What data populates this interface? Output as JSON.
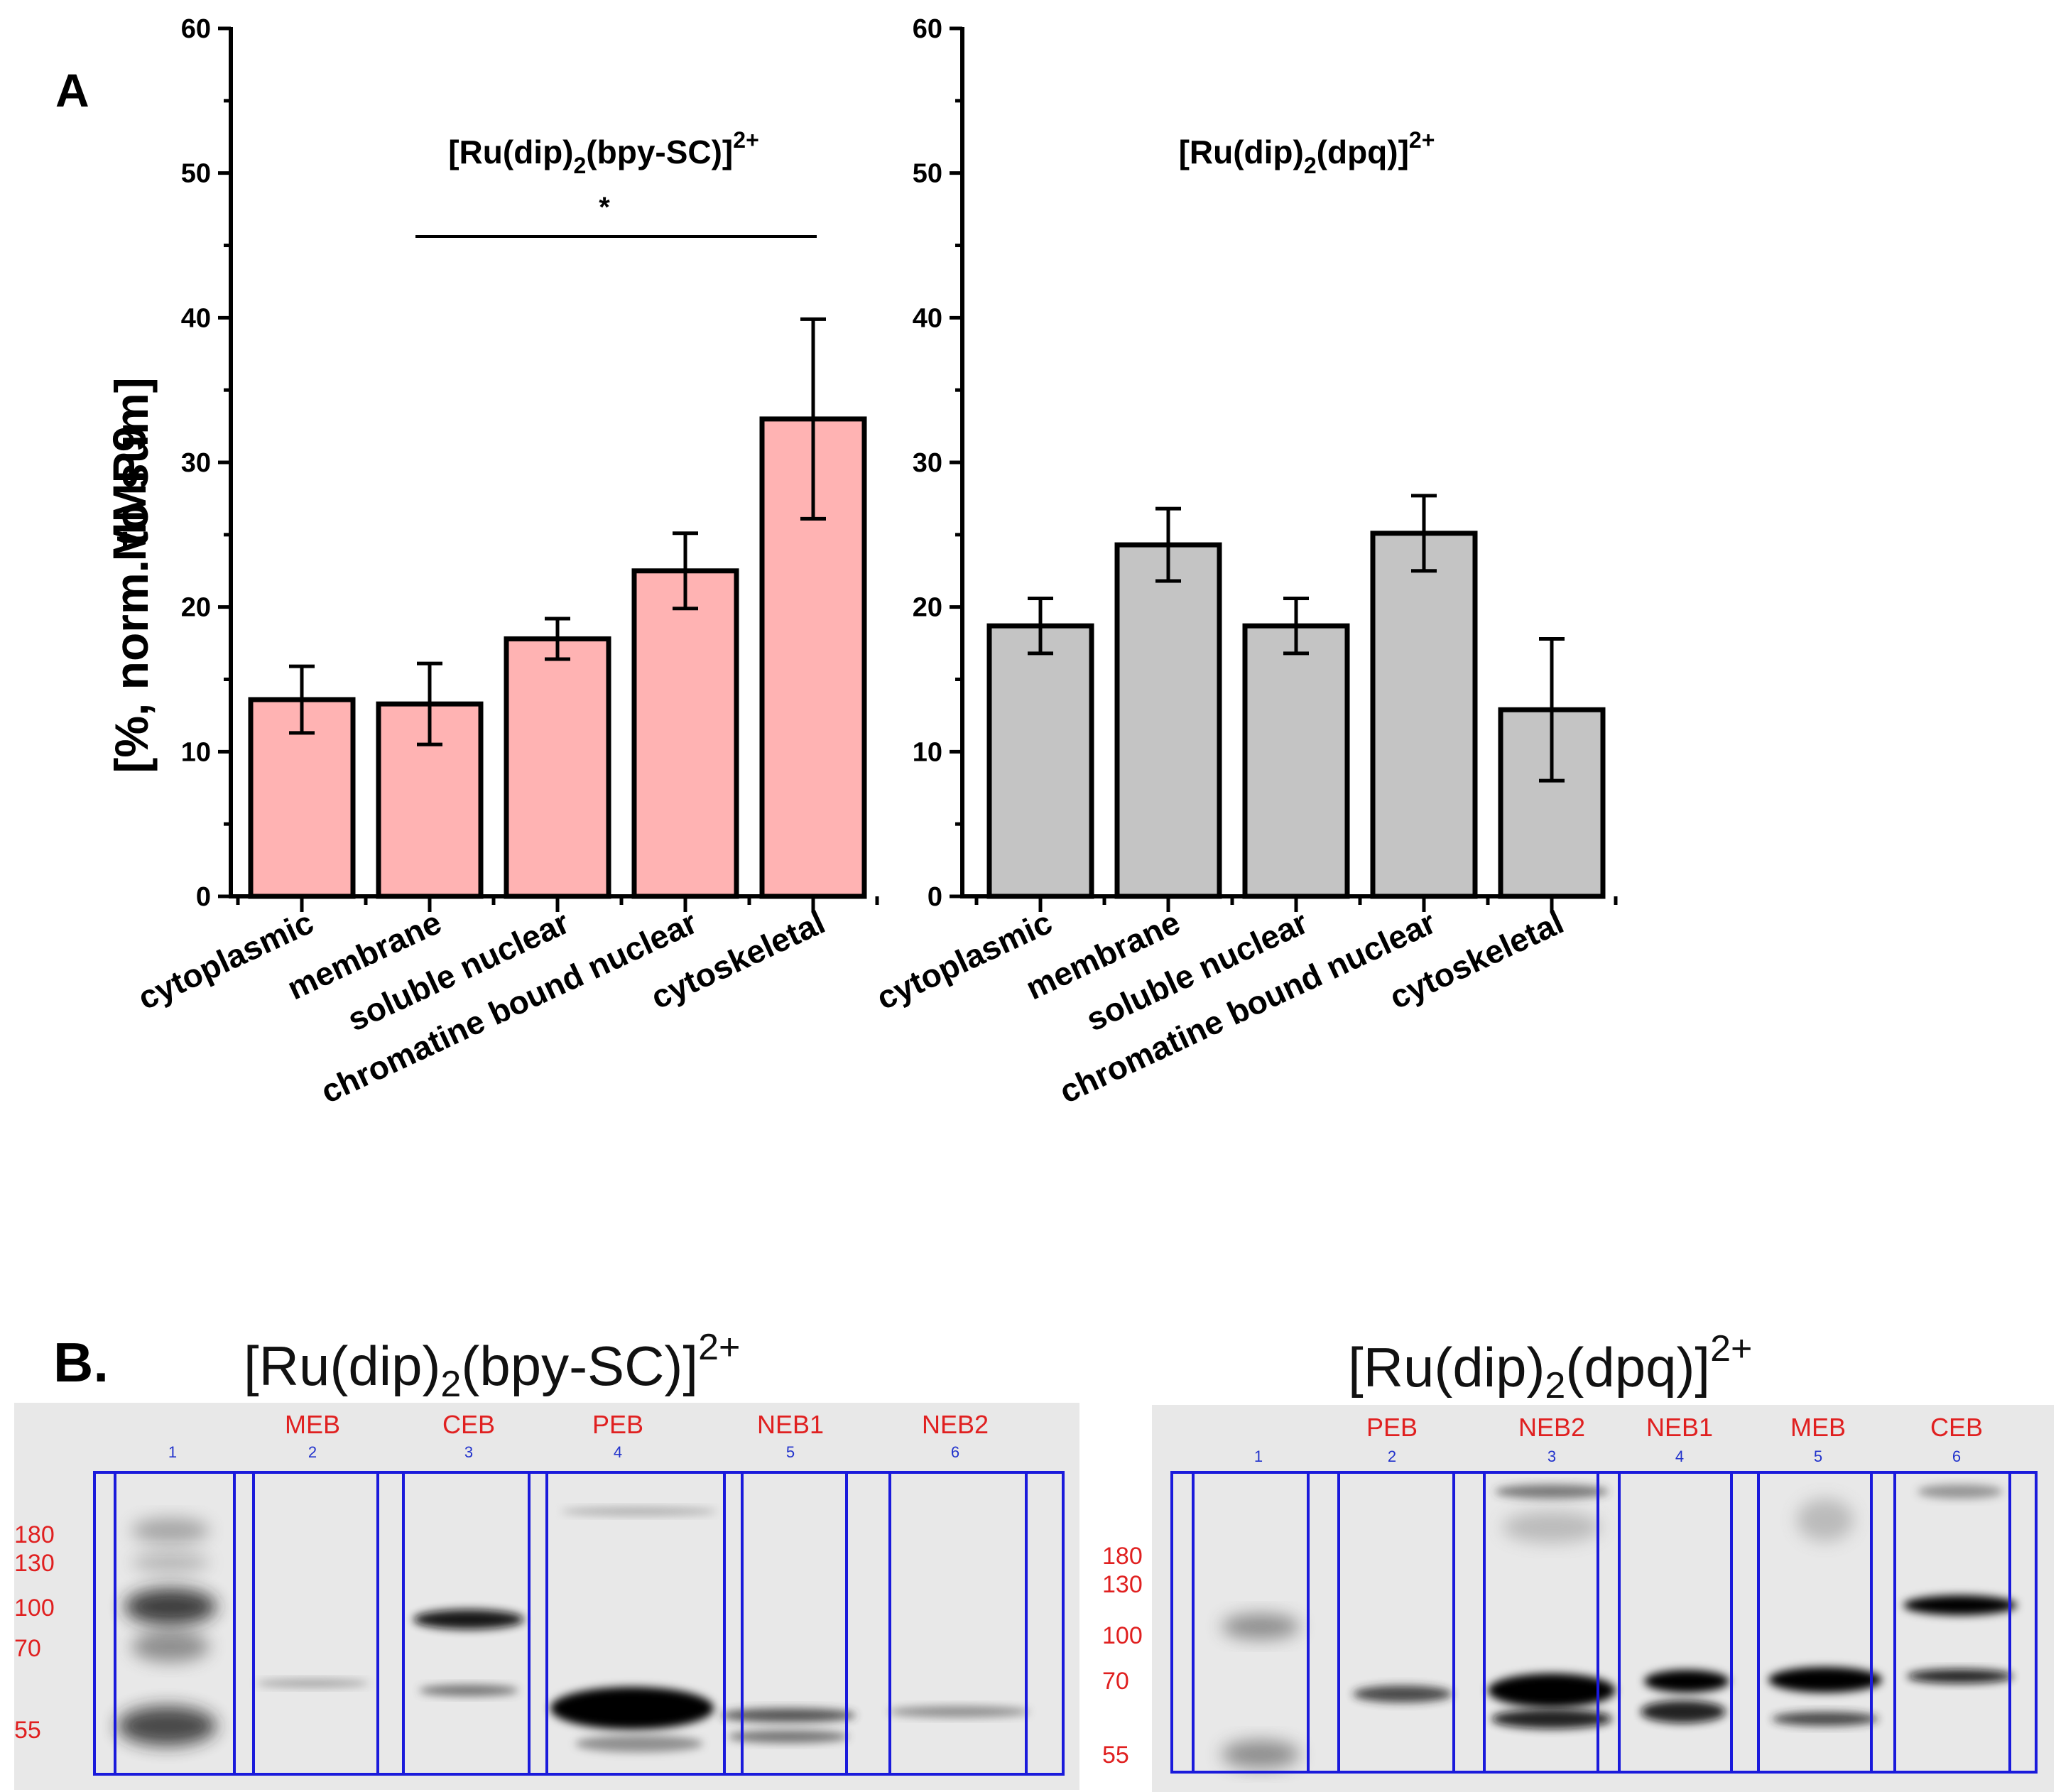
{
  "panel_a": {
    "letter": "A",
    "axis_title_line1": "MMP9",
    "axis_title_line2": "[%, norm. to sum]"
  },
  "chart_data": [
    {
      "type": "bar",
      "title_base": "[Ru(dip)",
      "title_sub": "2",
      "title_rest": "(bpy-SC)]",
      "title_sup": "2+",
      "categories": [
        "cytoplasmic",
        "membrane",
        "soluble nuclear",
        "chromatine bound nuclear",
        "cytoskeletal"
      ],
      "values": [
        13.6,
        13.3,
        17.8,
        22.5,
        33.0
      ],
      "errors": [
        2.3,
        2.8,
        1.4,
        2.6,
        6.9
      ],
      "bar_color": "#ffb3b3",
      "ylim": [
        0,
        60
      ],
      "yticks": [
        0,
        10,
        20,
        30,
        40,
        50,
        60
      ],
      "significance": {
        "from": 1,
        "to": 4,
        "label": "*"
      }
    },
    {
      "type": "bar",
      "title_base": "[Ru(dip)",
      "title_sub": "2",
      "title_rest": "(dpq)]",
      "title_sup": "2+",
      "categories": [
        "cytoplasmic",
        "membrane",
        "soluble nuclear",
        "chromatine bound nuclear",
        "cytoskeletal"
      ],
      "values": [
        18.7,
        24.3,
        18.7,
        25.1,
        12.9
      ],
      "errors": [
        1.9,
        2.5,
        1.9,
        2.6,
        4.9
      ],
      "bar_color": "#c4c4c4",
      "ylim": [
        0,
        60
      ],
      "yticks": [
        0,
        10,
        20,
        30,
        40,
        50,
        60
      ]
    }
  ],
  "panel_b": {
    "letter": "B.",
    "blots": [
      {
        "title_base": "[Ru(dip)",
        "title_sub": "2",
        "title_rest": "(bpy-SC)]",
        "title_sup": "2+",
        "lanes": [
          {
            "num": "1",
            "name": ""
          },
          {
            "num": "2",
            "name": "MEB"
          },
          {
            "num": "3",
            "name": "CEB"
          },
          {
            "num": "4",
            "name": "PEB"
          },
          {
            "num": "5",
            "name": "NEB1"
          },
          {
            "num": "6",
            "name": "NEB2"
          }
        ],
        "markers": [
          "180",
          "130",
          "100",
          "70",
          "55"
        ]
      },
      {
        "title_base": "[Ru(dip)",
        "title_sub": "2",
        "title_rest": "(dpq)]",
        "title_sup": "2+",
        "lanes": [
          {
            "num": "1",
            "name": ""
          },
          {
            "num": "2",
            "name": "PEB"
          },
          {
            "num": "3",
            "name": "NEB2"
          },
          {
            "num": "4",
            "name": "NEB1"
          },
          {
            "num": "5",
            "name": "MEB"
          },
          {
            "num": "6",
            "name": "CEB"
          }
        ],
        "markers": [
          "180",
          "130",
          "100",
          "70",
          "55"
        ]
      }
    ],
    "box_color": "#1a1adb"
  }
}
